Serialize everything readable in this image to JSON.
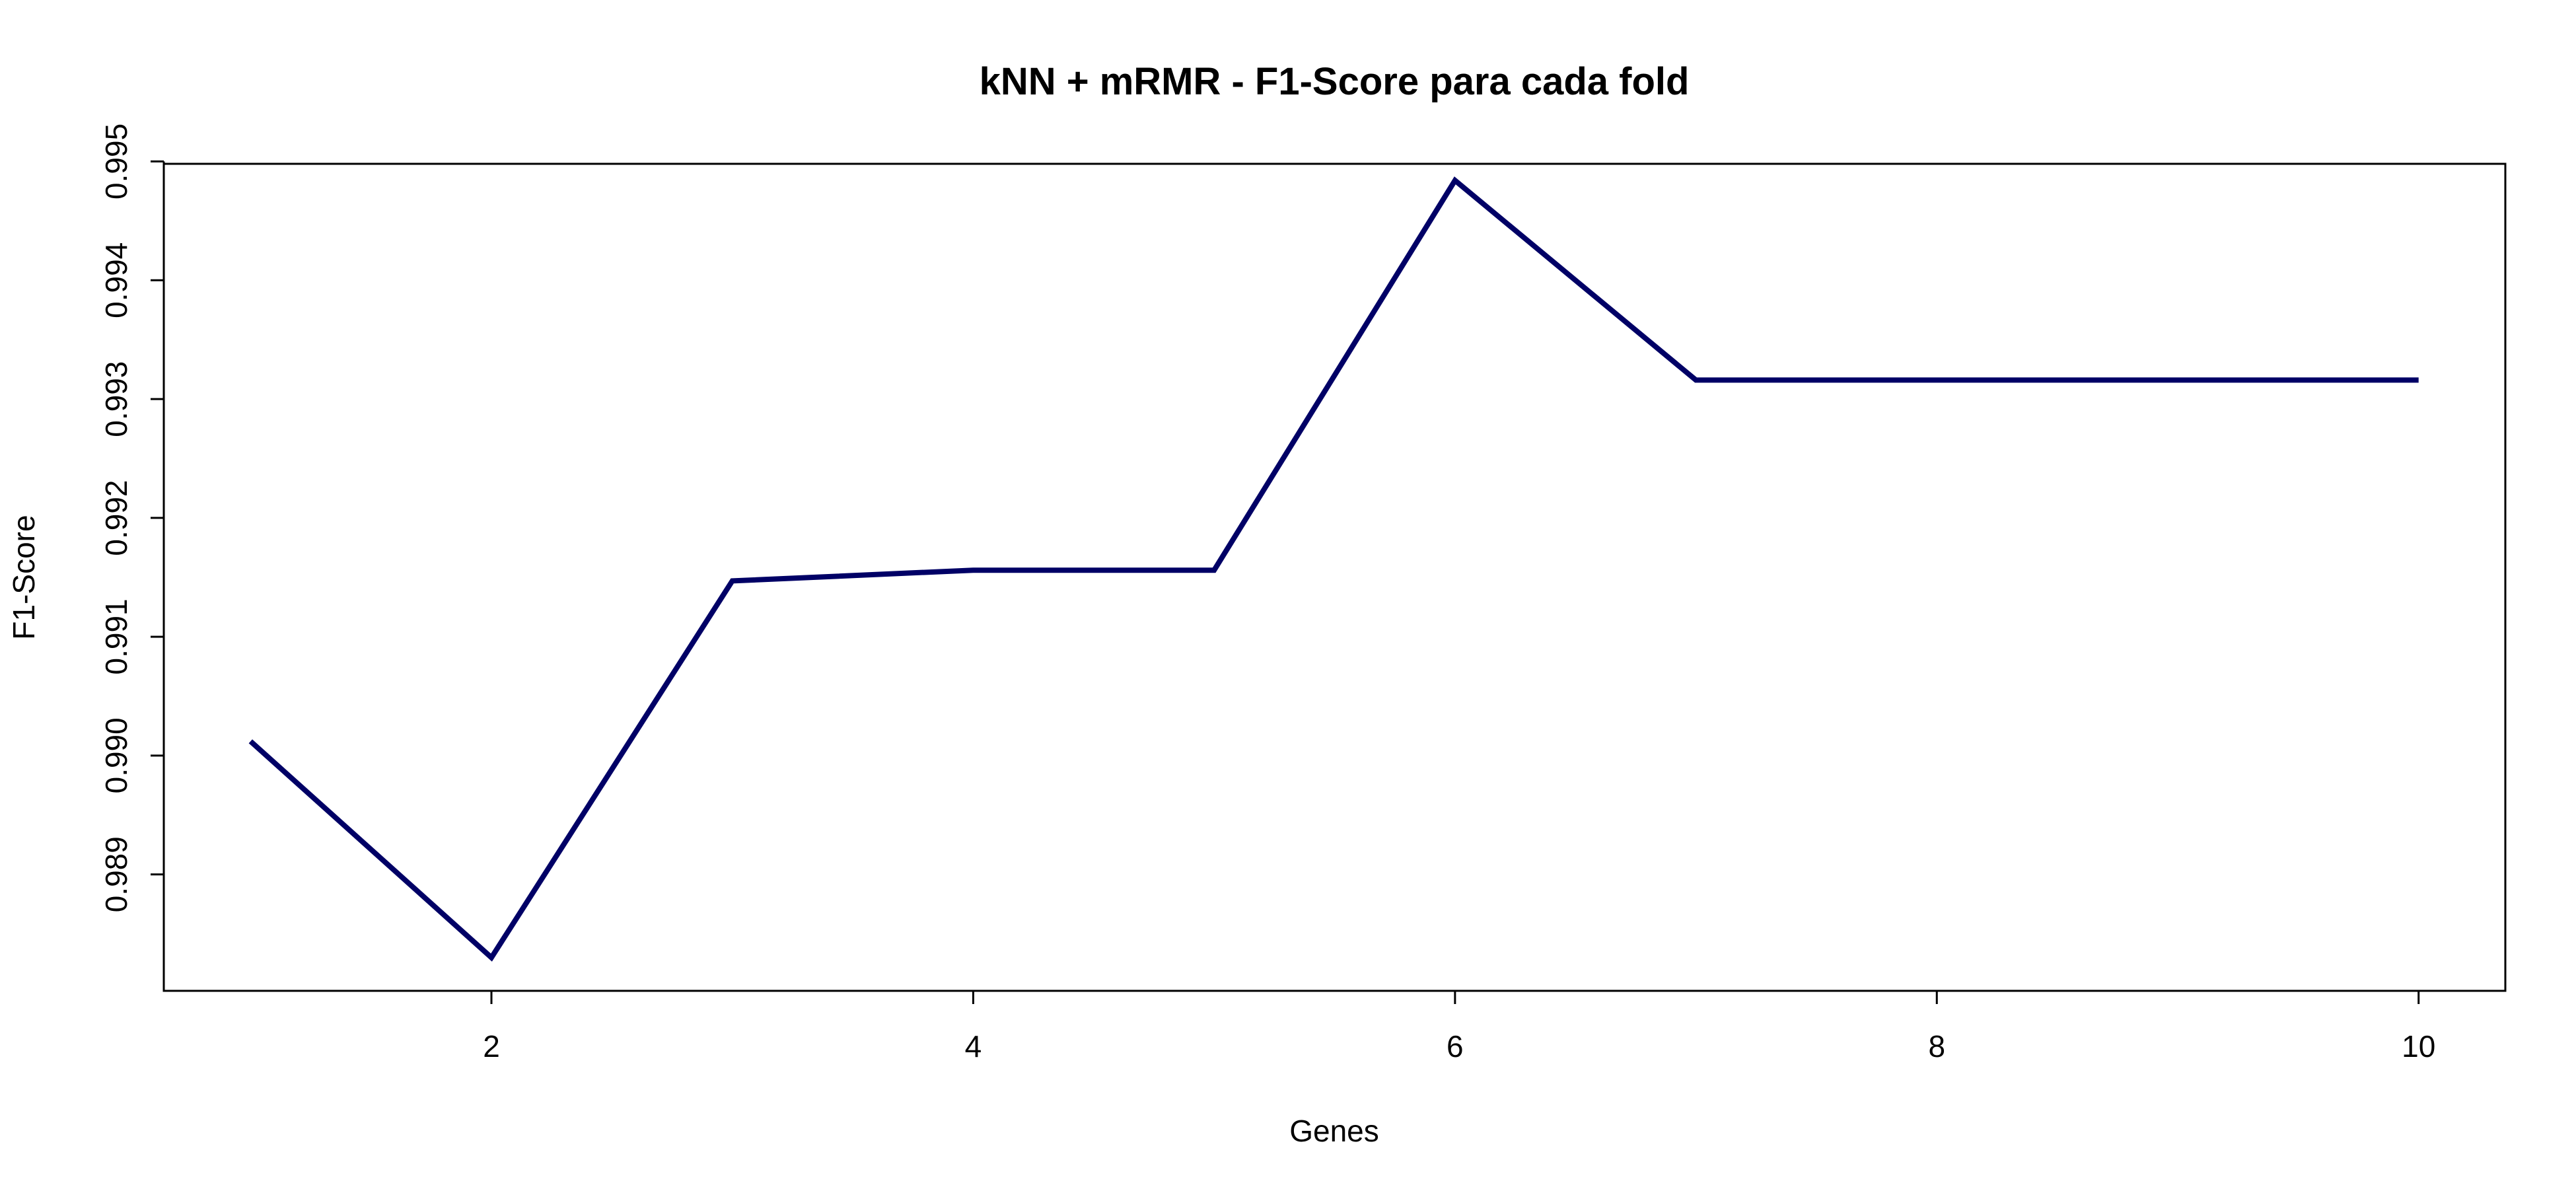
{
  "chart_data": {
    "type": "line",
    "title": "kNN + mRMR - F1-Score para cada fold",
    "xlabel": "Genes",
    "ylabel": "F1-Score",
    "x": [
      1,
      2,
      3,
      4,
      5,
      6,
      7,
      8,
      9,
      10
    ],
    "series": [
      {
        "values": [
          0.99012,
          0.9883,
          0.99147,
          0.99156,
          0.99156,
          0.99484,
          0.99316,
          0.99316,
          0.99316,
          0.99316
        ]
      }
    ],
    "xlim": [
      0.64,
      10.36
    ],
    "ylim": [
      0.98802,
      0.99498
    ],
    "x_ticks": [
      2,
      4,
      6,
      8,
      10
    ],
    "y_ticks": [
      0.989,
      0.99,
      0.991,
      0.992,
      0.993,
      0.994,
      0.995
    ],
    "x_tick_labels": [
      "2",
      "4",
      "6",
      "8",
      "10"
    ],
    "y_tick_labels": [
      "0.989",
      "0.990",
      "0.991",
      "0.992",
      "0.993",
      "0.994",
      "0.995"
    ],
    "grid": false,
    "line_color": "#000066"
  }
}
